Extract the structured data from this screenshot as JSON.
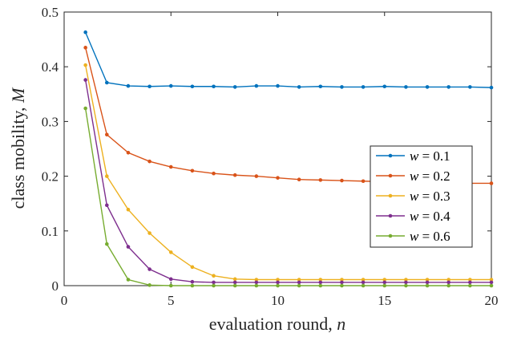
{
  "chart_data": {
    "type": "line",
    "xlabel": "evaluation round, n",
    "ylabel": "class mobility, M",
    "xlim": [
      0,
      20
    ],
    "ylim": [
      0,
      0.5
    ],
    "xticks": [
      "0",
      "5",
      "10",
      "15",
      "20"
    ],
    "yticks": [
      "0",
      "0.1",
      "0.2",
      "0.3",
      "0.4",
      "0.5"
    ],
    "grid": false,
    "legend_position": "right",
    "x": [
      1,
      2,
      3,
      4,
      5,
      6,
      7,
      8,
      9,
      10,
      11,
      12,
      13,
      14,
      15,
      16,
      17,
      18,
      19,
      20
    ],
    "series": [
      {
        "name": "w = 0.1",
        "color": "#0072BD",
        "values": [
          0.463,
          0.371,
          0.365,
          0.364,
          0.365,
          0.364,
          0.364,
          0.363,
          0.365,
          0.365,
          0.363,
          0.364,
          0.363,
          0.363,
          0.364,
          0.363,
          0.363,
          0.363,
          0.363,
          0.362
        ]
      },
      {
        "name": "w = 0.2",
        "color": "#D95319",
        "values": [
          0.435,
          0.276,
          0.243,
          0.227,
          0.217,
          0.21,
          0.205,
          0.202,
          0.2,
          0.197,
          0.194,
          0.193,
          0.192,
          0.191,
          0.19,
          0.189,
          0.188,
          0.188,
          0.187,
          0.187
        ]
      },
      {
        "name": "w = 0.3",
        "color": "#EDB120",
        "values": [
          0.403,
          0.2,
          0.139,
          0.096,
          0.061,
          0.034,
          0.018,
          0.012,
          0.011,
          0.011,
          0.011,
          0.011,
          0.011,
          0.011,
          0.011,
          0.011,
          0.011,
          0.011,
          0.011,
          0.011
        ]
      },
      {
        "name": "w = 0.4",
        "color": "#7E2F8E",
        "values": [
          0.376,
          0.147,
          0.071,
          0.03,
          0.012,
          0.007,
          0.006,
          0.006,
          0.006,
          0.006,
          0.006,
          0.006,
          0.006,
          0.006,
          0.006,
          0.006,
          0.006,
          0.006,
          0.006,
          0.006
        ]
      },
      {
        "name": "w = 0.6",
        "color": "#77AC30",
        "values": [
          0.324,
          0.076,
          0.011,
          0.001,
          0.0,
          0.0,
          0.0,
          0.0,
          0.0,
          0.0,
          0.0,
          0.0,
          0.0,
          0.0,
          0.0,
          0.0,
          0.0,
          0.0,
          0.0,
          0.0
        ]
      }
    ]
  }
}
